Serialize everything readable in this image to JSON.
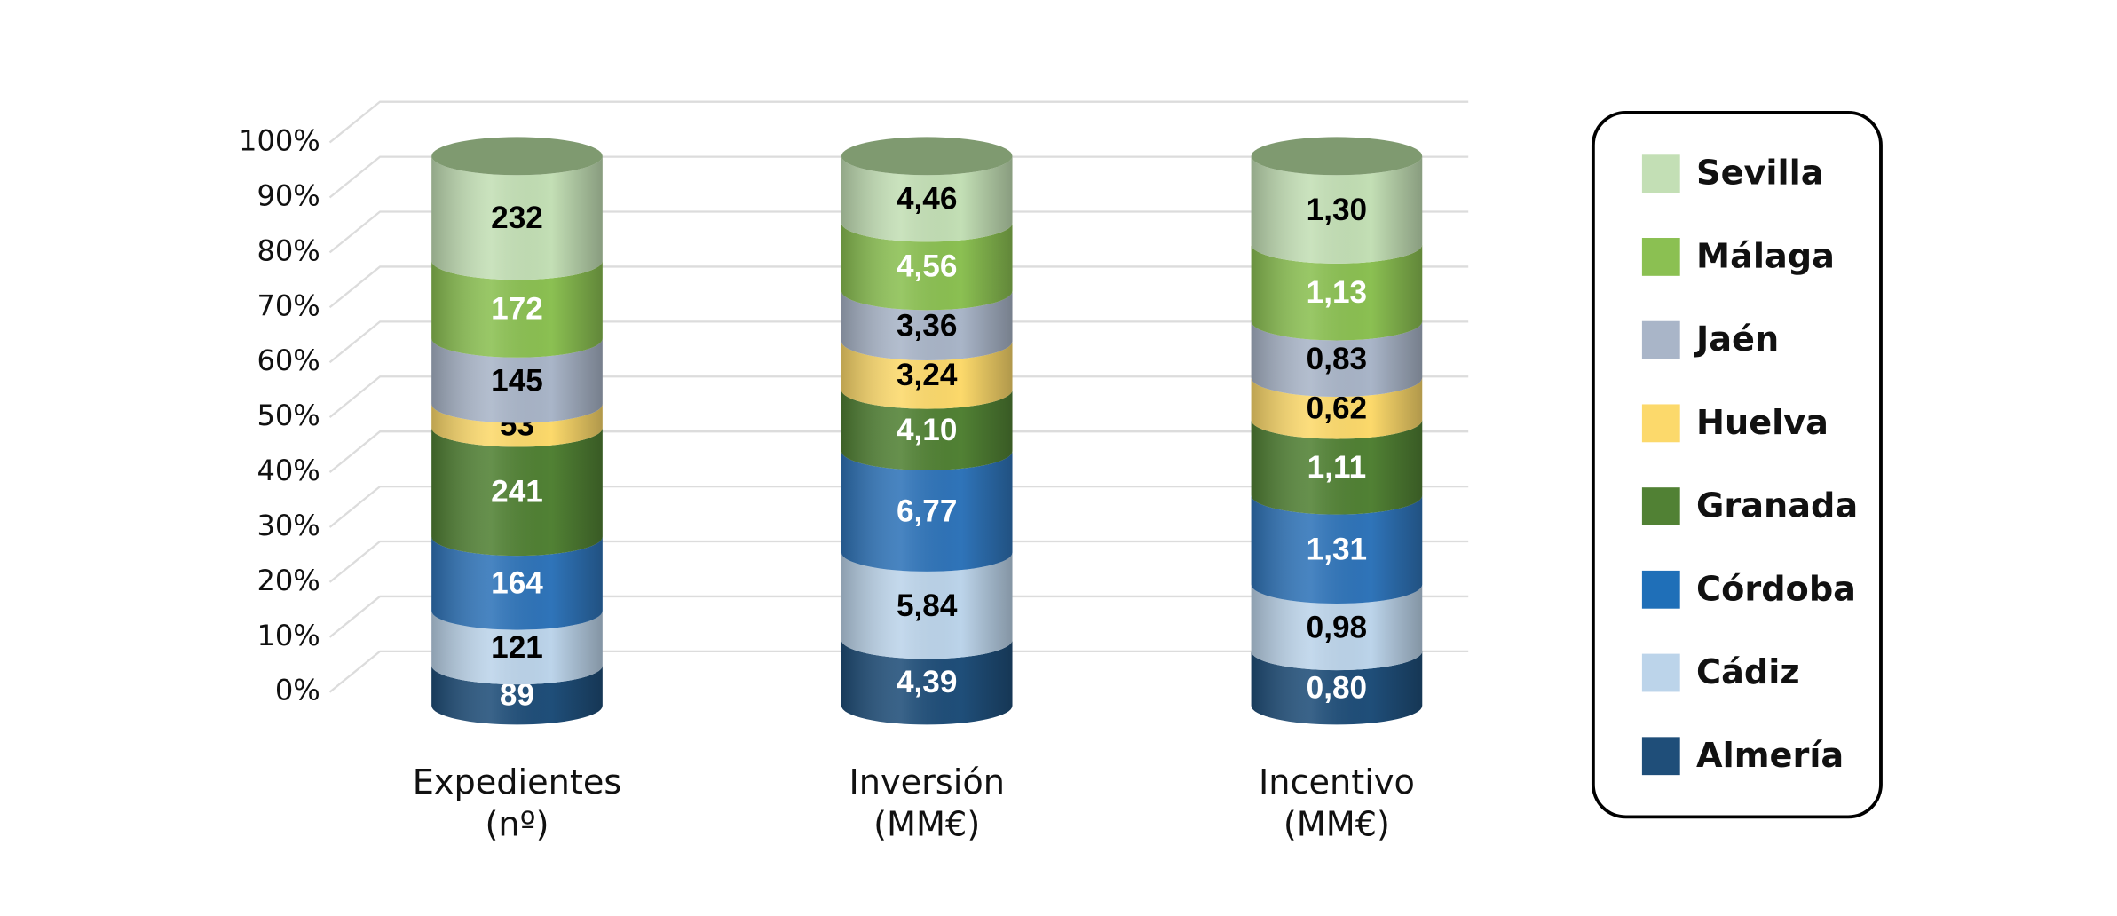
{
  "chart_data": {
    "type": "cylinder_stacked_percent",
    "categories": [
      [
        "Expedientes",
        "(nº)"
      ],
      [
        "Inversión",
        "(MM€)"
      ],
      [
        "Incentivo",
        "(MM€)"
      ]
    ],
    "series": [
      {
        "name": "Almería",
        "color": "#1f4e79",
        "label_color": "#ffffff",
        "values": [
          89,
          4.39,
          0.8
        ],
        "value_labels": [
          "89",
          "4,39",
          "0,80"
        ]
      },
      {
        "name": "Cádiz",
        "color": "#bcd4ea",
        "label_color": "#000000",
        "values": [
          121,
          5.84,
          0.98
        ],
        "value_labels": [
          "121",
          "5,84",
          "0,98"
        ]
      },
      {
        "name": "Córdoba",
        "color": "#2f74b9",
        "label_color": "#ffffff",
        "values": [
          164,
          6.77,
          1.31
        ],
        "value_labels": [
          "164",
          "6,77",
          "1,31"
        ]
      },
      {
        "name": "Granada",
        "color": "#518134",
        "label_color": "#ffffff",
        "values": [
          241,
          4.1,
          1.11
        ],
        "value_labels": [
          "241",
          "4,10",
          "1,11"
        ]
      },
      {
        "name": "Huelva",
        "color": "#fcd96b",
        "label_color": "#000000",
        "values": [
          53,
          3.24,
          0.62
        ],
        "value_labels": [
          "53",
          "3,24",
          "0,62"
        ]
      },
      {
        "name": "Jaén",
        "color": "#a9b5c8",
        "label_color": "#000000",
        "values": [
          145,
          3.36,
          0.83
        ],
        "value_labels": [
          "145",
          "3,36",
          "0,83"
        ]
      },
      {
        "name": "Málaga",
        "color": "#8bc052",
        "label_color": "#ffffff",
        "values": [
          172,
          4.56,
          1.13
        ],
        "value_labels": [
          "172",
          "4,56",
          "1,13"
        ]
      },
      {
        "name": "Sevilla",
        "color": "#c3dfb5",
        "label_color": "#000000",
        "values": [
          232,
          4.46,
          1.3
        ],
        "value_labels": [
          "232",
          "4,46",
          "1,30"
        ]
      }
    ],
    "ylim": [
      0,
      100
    ],
    "yticks": [
      {
        "value": 0,
        "label": "0%"
      },
      {
        "value": 10,
        "label": "10%"
      },
      {
        "value": 20,
        "label": "20%"
      },
      {
        "value": 30,
        "label": "30%"
      },
      {
        "value": 40,
        "label": "40%"
      },
      {
        "value": 50,
        "label": "50%"
      },
      {
        "value": 60,
        "label": "60%"
      },
      {
        "value": 70,
        "label": "70%"
      },
      {
        "value": 80,
        "label": "80%"
      },
      {
        "value": 90,
        "label": "90%"
      },
      {
        "value": 100,
        "label": "100%"
      }
    ],
    "grid": true,
    "legend": "right"
  }
}
